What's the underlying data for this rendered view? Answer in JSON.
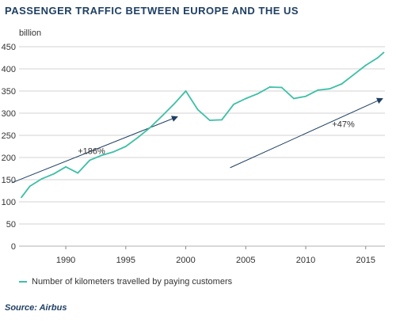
{
  "title": "PASSENGER TRAFFIC BETWEEN EUROPE AND THE US",
  "source": "Source: Airbus",
  "colors": {
    "line": "#3dbfa6",
    "arrow": "#1f3f63",
    "grid": "#d3d3d3",
    "title": "#1f3f63"
  },
  "chart_data": {
    "type": "line",
    "ylabel": "billion",
    "xlabel": "",
    "title": "PASSENGER TRAFFIC BETWEEN EUROPE AND THE US",
    "ylim": [
      0,
      450
    ],
    "xlim": [
      1986.1,
      2016.6
    ],
    "yticks": [
      0,
      50,
      100,
      150,
      200,
      250,
      300,
      350,
      400,
      450
    ],
    "xticks": [
      1990,
      1995,
      2000,
      2005,
      2010,
      2015
    ],
    "grid": true,
    "legend_position": "bottom-left",
    "series": [
      {
        "name": "Number of kilometers travelled by paying customers",
        "x": [
          1986.3,
          1987,
          1988,
          1989,
          1990,
          1991,
          1992,
          1993,
          1994,
          1995,
          1996,
          1997,
          1998,
          1999,
          2000,
          2001,
          2002,
          2003,
          2004,
          2005,
          2006,
          2007,
          2008,
          2009,
          2010,
          2011,
          2012,
          2013,
          2014,
          2015,
          2016,
          2016.5
        ],
        "values": [
          110,
          135,
          152,
          163,
          179,
          165,
          194,
          205,
          213,
          225,
          245,
          267,
          293,
          320,
          350,
          308,
          284,
          285,
          320,
          333,
          344,
          359,
          358,
          333,
          338,
          352,
          355,
          366,
          387,
          408,
          425,
          437
        ]
      }
    ],
    "annotations": [
      {
        "text": "+186%",
        "x": 1991,
        "y": 208,
        "arrow_from": [
          1985.5,
          143
        ],
        "arrow_to": [
          1999.3,
          292
        ]
      },
      {
        "text": "+47%",
        "x": 2012.2,
        "y": 269,
        "arrow_from": [
          2003.7,
          177
        ],
        "arrow_to": [
          2016.4,
          333
        ]
      }
    ]
  }
}
